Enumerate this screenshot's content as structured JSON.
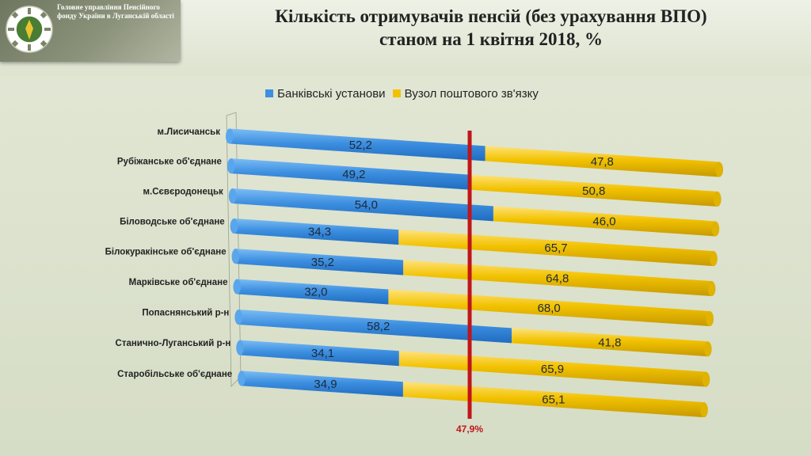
{
  "header": {
    "org_name": "Головне управління Пенсійного фонду України в Луганській області",
    "title_line1": "Кількість отримувачів пенсій (без урахування ВПО)",
    "title_line2": "станом на 1 квітня 2018, %"
  },
  "colors": {
    "bank": "#3d8fe0",
    "post": "#f2c200",
    "marker": "#c0151a"
  },
  "chart_data": {
    "type": "bar",
    "orientation": "horizontal",
    "stacked": true,
    "categories": [
      "м.Лисичанськ",
      "Рубіжанське об'єднане",
      "м.Сєвєродонецьк",
      "Біловодське об'єднане",
      "Білокуракінське об'єднане",
      "Марківське об'єднане",
      "Попаснянський р-н",
      "Станично-Луганський р-н",
      "Старобільське об'єднане"
    ],
    "series": [
      {
        "name": "Банківські установи",
        "values": [
          52.2,
          49.2,
          54.0,
          34.3,
          35.2,
          32.0,
          58.2,
          34.1,
          34.9
        ],
        "labels": [
          "52,2",
          "49,2",
          "54,0",
          "34,3",
          "35,2",
          "32,0",
          "58,2",
          "34,1",
          "34,9"
        ]
      },
      {
        "name": "Вузол поштового зв'язку",
        "values": [
          47.8,
          50.8,
          46.0,
          65.7,
          64.8,
          68.0,
          41.8,
          65.9,
          65.1
        ],
        "labels": [
          "47,8",
          "50,8",
          "46,0",
          "65,7",
          "64,8",
          "68,0",
          "41,8",
          "65,9",
          "65,1"
        ]
      }
    ],
    "xlim": [
      0,
      100
    ],
    "reference_line": {
      "value": 47.9,
      "label": "47,9%"
    },
    "legend_position": "top"
  }
}
